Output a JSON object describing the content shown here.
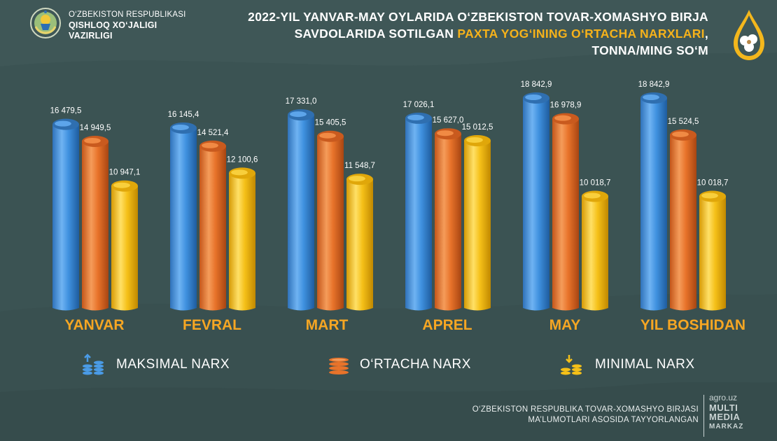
{
  "header": {
    "ministry_line1": "O‘ZBEKISTON RESPUBLIKASI",
    "ministry_line2": "QISHLOQ XO‘JALIGI",
    "ministry_line3": "VAZIRLIGI",
    "title_part1": "2022-YIL YANVAR-MAY OYLARIDA O‘ZBEKISTON TOVAR-XOMASHYO BIRJA SAVDOLARIDA SOTILGAN ",
    "title_highlight": "PAXTA YOG‘INING O‘RTACHA NARXLARI",
    "title_part2": ", TONNA/MING SO‘M"
  },
  "legend": {
    "max_label": "MAKSIMAL NARX",
    "avg_label": "O‘RTACHA NARX",
    "min_label": "MINIMAL NARX"
  },
  "footer": {
    "source_line1": "O‘ZBEKISTON RESPUBLIKA TOVAR-XOMASHYO BIRJASI",
    "source_line2": "MA’LUMOTLARI ASOSIDA TAYYORLANGAN",
    "brand_line1": "agro.uz",
    "brand_line2": "MULTI",
    "brand_line3": "MEDIA",
    "brand_line4": "MARKAZ"
  },
  "colors": {
    "background": "#3f5757",
    "max": "#3d8fde",
    "avg": "#e8732a",
    "min": "#f5c018",
    "accent": "#f6a623"
  },
  "chart_data": {
    "type": "bar",
    "title": "2022-YIL YANVAR-MAY OYLARIDA O‘ZBEKISTON TOVAR-XOMASHYO BIRJA SAVDOLARIDA SOTILGAN PAXTA YOG‘INING O‘RTACHA NARXLARI, TONNA/MING SO‘M",
    "xlabel": "",
    "ylabel": "TONNA/MING SO‘M",
    "ylim": [
      0,
      20000
    ],
    "categories": [
      "YANVAR",
      "FEVRAL",
      "MART",
      "APREL",
      "MAY",
      "YIL BOSHIDAN"
    ],
    "series": [
      {
        "name": "MAKSIMAL NARX",
        "values": [
          16479.5,
          16145.4,
          17331.0,
          17026.1,
          18842.9,
          18842.9
        ],
        "labels": [
          "16 479,5",
          "16 145,4",
          "17 331,0",
          "17 026,1",
          "18 842,9",
          "18 842,9"
        ]
      },
      {
        "name": "O‘RTACHA NARX",
        "values": [
          14949.5,
          14521.4,
          15405.5,
          15627.0,
          16978.9,
          15524.5
        ],
        "labels": [
          "14 949,5",
          "14 521,4",
          "15 405,5",
          "15 627,0",
          "16 978,9",
          "15 524,5"
        ]
      },
      {
        "name": "MINIMAL NARX",
        "values": [
          10947.1,
          12100.6,
          11548.7,
          15012.5,
          10018.7,
          10018.7
        ],
        "labels": [
          "10 947,1",
          "12 100,6",
          "11 548,7",
          "15 012,5",
          "10 018,7",
          "10 018,7"
        ]
      }
    ]
  }
}
